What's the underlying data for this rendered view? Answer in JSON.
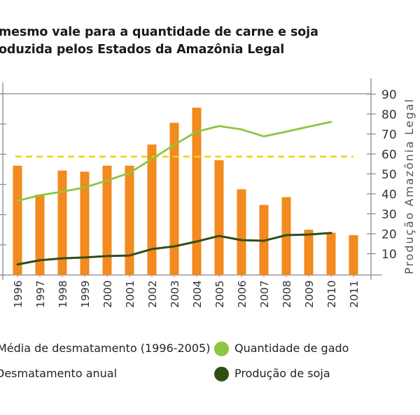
{
  "title": {
    "line1": "mesmo vale para a quantidade de carne e soja",
    "line2": "oduzida pelos Estados da Amazônia Legal"
  },
  "legend": {
    "avg": "Média de desmatamento (1996-2005)",
    "annual": "Desmatamento anual",
    "cattle": "Quantidade de gado",
    "soy": "Produção de soja"
  },
  "colors": {
    "bar": "#f28a1e",
    "avg_line": "#f2d21b",
    "cattle": "#8dc63f",
    "soy": "#2f4f14",
    "axis": "#8a8a8a"
  },
  "chart_data": {
    "type": "bar",
    "title": "mesmo vale para a quantidade de carne e soja oduzida pelos Estados da Amazônia Legal",
    "xlabel": "",
    "ylabel_left": "",
    "ylabel_right": "Produção Amazônia Legal",
    "categories": [
      "1996",
      "1997",
      "1998",
      "1999",
      "2000",
      "2001",
      "2002",
      "2003",
      "2004",
      "2005",
      "2006",
      "2007",
      "2008",
      "2009",
      "2010",
      "2011"
    ],
    "left_axis": {
      "ylim": [
        0,
        30
      ],
      "ticks": [
        0,
        5,
        10,
        15,
        20,
        25,
        30
      ],
      "tick_labels_visible": false
    },
    "right_axis": {
      "ylim": [
        0,
        90
      ],
      "ticks": [
        10,
        20,
        30,
        40,
        50,
        60,
        70,
        80,
        90
      ],
      "tick_labels": [
        "10",
        "20",
        "30",
        "40",
        "50",
        "60",
        "70",
        "80",
        "90"
      ]
    },
    "series": [
      {
        "name": "Desmatamento anual",
        "type": "bar",
        "axis": "left",
        "values": [
          18.1,
          13.3,
          17.3,
          17.1,
          18.1,
          18.1,
          21.6,
          25.2,
          27.7,
          19.0,
          14.2,
          11.6,
          12.9,
          7.5,
          7.0,
          6.6
        ]
      },
      {
        "name": "Média de desmatamento (1996-2005)",
        "type": "hline",
        "axis": "left",
        "style": "dashed",
        "value": 19.6
      },
      {
        "name": "Quantidade de gado",
        "type": "line",
        "axis": "right",
        "values": [
          36.5,
          39.3,
          41.1,
          43.2,
          46.7,
          50.5,
          57.5,
          64.6,
          71.2,
          74.0,
          72.3,
          68.8,
          71.2,
          73.7,
          76.1,
          null
        ]
      },
      {
        "name": "Produção de soja",
        "type": "line",
        "axis": "right",
        "values": [
          4.6,
          6.7,
          7.7,
          8.1,
          8.8,
          9.1,
          12.3,
          13.7,
          16.1,
          18.9,
          16.8,
          16.5,
          19.3,
          19.6,
          20.4,
          null
        ]
      }
    ],
    "grid": false,
    "legend_position": "bottom"
  }
}
